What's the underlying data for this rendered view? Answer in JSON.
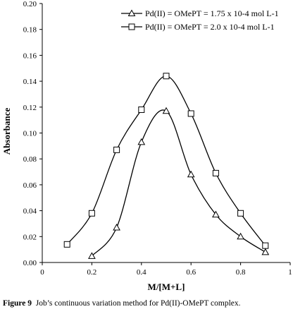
{
  "chart_data": {
    "type": "line",
    "xlabel": "M/[M+L]",
    "ylabel": "Absorbance",
    "xlim": [
      0,
      1
    ],
    "ylim": [
      0,
      0.2
    ],
    "x_ticks": [
      "0",
      "0.2",
      "0.4",
      "0.6",
      "0.8",
      "1"
    ],
    "y_ticks": [
      "0.00",
      "0.02",
      "0.04",
      "0.06",
      "0.08",
      "0.10",
      "0.12",
      "0.14",
      "0.16",
      "0.18",
      "0.20"
    ],
    "grid": false,
    "legend_position": "top-right",
    "series": [
      {
        "name": "Pd(II) = OMePT = 1.75 x 10-4 mol L-1",
        "marker": "triangle",
        "color": "#000000",
        "x": [
          0.2,
          0.3,
          0.4,
          0.5,
          0.6,
          0.7,
          0.8,
          0.9
        ],
        "y": [
          0.005,
          0.027,
          0.093,
          0.117,
          0.068,
          0.037,
          0.02,
          0.008
        ]
      },
      {
        "name": "Pd(II) = OMePT = 2.0 x 10-4 mol L-1",
        "marker": "square",
        "color": "#000000",
        "x": [
          0.1,
          0.2,
          0.3,
          0.4,
          0.5,
          0.6,
          0.7,
          0.8,
          0.9
        ],
        "y": [
          0.014,
          0.038,
          0.087,
          0.118,
          0.144,
          0.115,
          0.069,
          0.038,
          0.013
        ]
      }
    ]
  },
  "caption": {
    "label": "Figure 9",
    "text": "Job’s continuous variation method for Pd(II)-OMePT complex."
  }
}
